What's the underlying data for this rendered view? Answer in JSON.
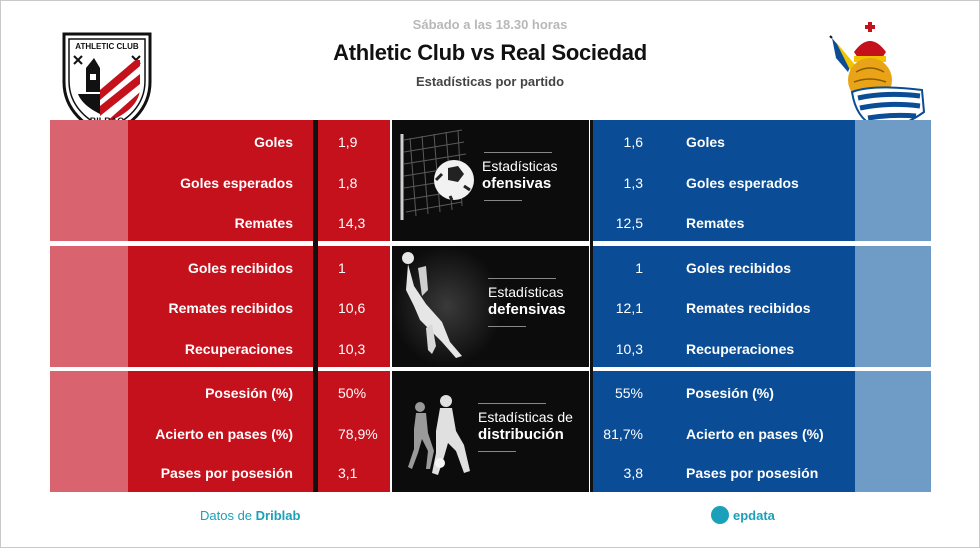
{
  "header": {
    "time_text": "Sábado a las 18.30 horas",
    "title": "Athletic Club vs Real Sociedad",
    "subtitle": "Estadísticas por partido"
  },
  "home": {
    "name": "Athletic Club",
    "logo_text_top": "ATHLETIC CLUB",
    "logo_text_bottom": "BILBAO",
    "color_dark": "#c4111c",
    "color_pale": "#d96470"
  },
  "away": {
    "name": "Real Sociedad",
    "color_dark": "#0a4d96",
    "color_pale": "#6f9cc7"
  },
  "sections": [
    {
      "title_light": "Estadísticas",
      "title_bold": "ofensivas",
      "icon": "soccer-ball-in-net-icon",
      "rows": [
        {
          "label": "Goles",
          "home": "1,9",
          "away": "1,6"
        },
        {
          "label": "Goles esperados",
          "home": "1,8",
          "away": "1,3"
        },
        {
          "label": "Remates",
          "home": "14,3",
          "away": "12,5"
        }
      ]
    },
    {
      "title_light": "Estadísticas",
      "title_bold": "defensivas",
      "icon": "goalkeeper-diving-icon",
      "rows": [
        {
          "label": "Goles recibidos",
          "home": "1",
          "away": "1"
        },
        {
          "label": "Remates recibidos",
          "home": "10,6",
          "away": "12,1"
        },
        {
          "label": "Recuperaciones",
          "home": "10,3",
          "away": "10,3"
        }
      ]
    },
    {
      "title_light": "Estadísticas de",
      "title_bold": "distribución",
      "icon": "players-passing-icon",
      "rows": [
        {
          "label": "Posesión (%)",
          "home": "50%",
          "away": "55%"
        },
        {
          "label": "Acierto en pases (%)",
          "home": "78,9%",
          "away": "81,7%"
        },
        {
          "label": "Pases por posesión",
          "home": "3,1",
          "away": "3,8"
        }
      ]
    }
  ],
  "footer": {
    "source_prefix": "Datos de ",
    "source_name": "Driblab",
    "brand": "epdata"
  }
}
